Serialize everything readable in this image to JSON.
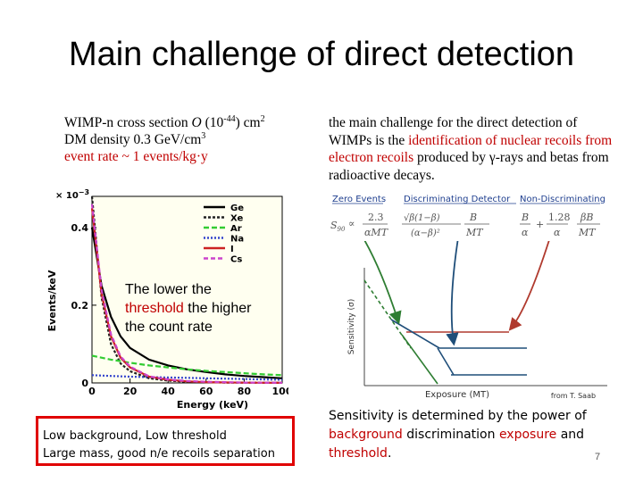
{
  "slide": {
    "title": "Main challenge of direct detection",
    "page_number": "7"
  },
  "left_info": {
    "line1_a": "WIMP-n cross section ",
    "line1_O": "O",
    "line1_b": " (10",
    "line1_exp": "-44",
    "line1_c": ") cm",
    "line1_exp2": "2",
    "line2_a": "DM density 0.3 GeV/cm",
    "line2_exp": "3",
    "line3": "event rate ~ 1 events/kg·y"
  },
  "right_info": {
    "text_a": "the main challenge for the direct detection of WIMPs is the ",
    "text_red": "identification of nuclear recoils from electron recoils",
    "text_b": " produced by γ-rays and betas from radioactive decays."
  },
  "overlay": {
    "line1": "The lower the",
    "line2_red": "threshold",
    "line2_b": " the higher",
    "line3": "the count rate"
  },
  "red_box": {
    "line1": "Low background, Low threshold",
    "line2": "Large mass, good n/e recoils separation"
  },
  "formulas": {
    "zero_events": "Zero Events",
    "discriminating": "Discriminating Detector",
    "non_discriminating": "Non-Discriminating",
    "s90": "S",
    "s90_sub": "90",
    "propto": "∝",
    "f1_num": "2.3",
    "f1_den": "αMT",
    "f2_num": "√β(1−β)",
    "f2_den": "(α−β)²",
    "f2_r_num": "B",
    "f2_r_den": "MT",
    "f3_a_num": "B",
    "f3_a_den": "α",
    "plus": "+",
    "f3_b_num": "1.28",
    "f3_b_den": "α",
    "f3_c_num": "βB",
    "f3_c_den": "MT"
  },
  "sensitivity_plot": {
    "ylabel": "Sensitivity (σ)",
    "xlabel": "Exposure (MT)",
    "credit": "from T. Saab"
  },
  "bottom_text": {
    "a": "Sensitivity is determined by the power of ",
    "red1": "background",
    "b": " discrimination ",
    "red2": "exposure",
    "c": " and ",
    "d": "threshold",
    "e": "."
  },
  "colors": {
    "accent_red": "#c00000",
    "box_red": "#e00000"
  },
  "chart_data": {
    "type": "line",
    "xlabel": "Energy (keV)",
    "ylabel": "Events/keV",
    "y_multiplier_label": "× 10",
    "y_multiplier_exp": "−3",
    "xlim": [
      0,
      100
    ],
    "ylim": [
      0,
      0.48
    ],
    "x_ticks": [
      0,
      20,
      40,
      60,
      80,
      100
    ],
    "y_ticks": [
      0,
      0.2,
      0.4
    ],
    "y_tick_labels": [
      "0",
      "0.2",
      "0.4"
    ],
    "x_tick_labels": [
      "0",
      "20",
      "40",
      "60",
      "80",
      "100"
    ],
    "legend": [
      "Ge",
      "Xe",
      "Ar",
      "Na",
      "I",
      "Cs"
    ],
    "legend_position": "top-right",
    "series": [
      {
        "name": "Ge",
        "color": "#000000",
        "dash": "",
        "x": [
          0,
          5,
          10,
          15,
          20,
          30,
          40,
          50,
          60,
          70,
          80,
          90,
          100
        ],
        "y": [
          0.4,
          0.25,
          0.17,
          0.12,
          0.09,
          0.06,
          0.045,
          0.035,
          0.028,
          0.022,
          0.018,
          0.015,
          0.012
        ]
      },
      {
        "name": "Xe",
        "color": "#222222",
        "dash": "3,2",
        "x": [
          0,
          5,
          10,
          15,
          20,
          30,
          40,
          50,
          60,
          70,
          80,
          90,
          100
        ],
        "y": [
          0.5,
          0.22,
          0.1,
          0.05,
          0.03,
          0.012,
          0.006,
          0.003,
          0.002,
          0.001,
          0.001,
          0.0005,
          0.0003
        ]
      },
      {
        "name": "Ar",
        "color": "#33cc33",
        "dash": "6,3",
        "x": [
          0,
          10,
          20,
          30,
          40,
          50,
          60,
          70,
          80,
          90,
          100
        ],
        "y": [
          0.07,
          0.06,
          0.052,
          0.045,
          0.04,
          0.035,
          0.031,
          0.028,
          0.025,
          0.022,
          0.02
        ]
      },
      {
        "name": "Na",
        "color": "#3344cc",
        "dash": "2,2",
        "x": [
          0,
          10,
          20,
          30,
          40,
          50,
          60,
          70,
          80,
          90,
          100
        ],
        "y": [
          0.02,
          0.018,
          0.016,
          0.015,
          0.014,
          0.013,
          0.012,
          0.011,
          0.01,
          0.009,
          0.008
        ]
      },
      {
        "name": "I",
        "color": "#cc2222",
        "dash": "",
        "x": [
          0,
          5,
          10,
          15,
          20,
          30,
          40,
          50,
          60,
          70,
          80,
          90,
          100
        ],
        "y": [
          0.45,
          0.23,
          0.12,
          0.065,
          0.04,
          0.016,
          0.008,
          0.004,
          0.002,
          0.0012,
          0.0008,
          0.0005,
          0.0003
        ]
      },
      {
        "name": "Cs",
        "color": "#cc44cc",
        "dash": "5,3",
        "x": [
          0,
          5,
          10,
          15,
          20,
          30,
          40,
          50,
          60,
          70,
          80,
          90,
          100
        ],
        "y": [
          0.46,
          0.24,
          0.125,
          0.068,
          0.042,
          0.017,
          0.009,
          0.005,
          0.003,
          0.002,
          0.001,
          0.0006,
          0.0004
        ]
      }
    ]
  }
}
